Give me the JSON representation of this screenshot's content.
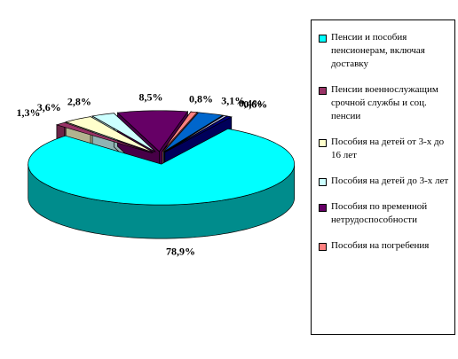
{
  "chart_data": {
    "type": "pie",
    "categories": [
      "Пенсии и пособия пенсионерам, включая доставку",
      "Пенсии военнослужащим срочной службы и соц. пенсии",
      "Пособия на детей от 3-х до 16 лет",
      "Пособия на детей до 3-х лет",
      "Пособия по временной нетрудоспособности",
      "Пособия на погребения",
      null,
      null,
      null
    ],
    "values": [
      78.9,
      1.3,
      3.6,
      2.8,
      8.5,
      0.8,
      3.1,
      0.4,
      0.6
    ],
    "value_labels": [
      "78,9%",
      "1,3%",
      "3,6%",
      "2,8%",
      "8,5%",
      "0,8%",
      "3,1%",
      "0,4%",
      "0,6%"
    ],
    "colors": [
      "#00ffff",
      "#993366",
      "#ffffcc",
      "#ccffff",
      "#660066",
      "#ff8080",
      "#0066cc",
      "#ccccff",
      "#000080"
    ],
    "legend": "right"
  }
}
